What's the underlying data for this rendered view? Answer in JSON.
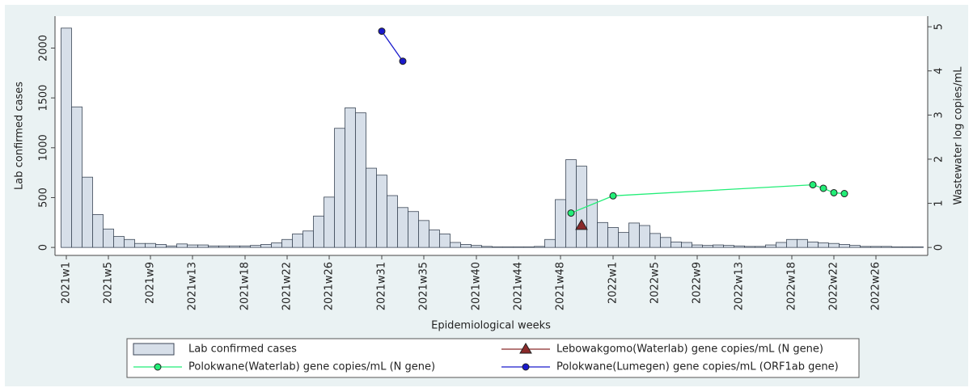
{
  "chart_data": {
    "type": "combo",
    "x_label": "Epidemiological weeks",
    "y_label": "Lab confirmed cases",
    "y2_label": "Wastewater log copies/mL",
    "categories": [
      "2021w1",
      null,
      null,
      null,
      "2021w5",
      null,
      null,
      null,
      "2021w9",
      null,
      null,
      null,
      "2021w13",
      null,
      null,
      null,
      null,
      "2021w18",
      null,
      null,
      null,
      "2021w22",
      null,
      null,
      null,
      "2021w26",
      null,
      null,
      null,
      null,
      "2021w31",
      null,
      null,
      null,
      "2021w35",
      null,
      null,
      null,
      null,
      "2021w40",
      null,
      null,
      null,
      "2021w44",
      null,
      null,
      null,
      "2021w48",
      null,
      null,
      null,
      null,
      "2022w1",
      null,
      null,
      null,
      "2022w5",
      null,
      null,
      null,
      "2022w9",
      null,
      null,
      null,
      "2022w13",
      null,
      null,
      null,
      null,
      "2022w18",
      null,
      null,
      null,
      "2022w22",
      null,
      null,
      null,
      "2022w26",
      null,
      null,
      null,
      null
    ],
    "ylim": [
      -80,
      2320
    ],
    "yticks": [
      0,
      500,
      1000,
      1500,
      2000
    ],
    "y2lim": [
      -0.18,
      5.24
    ],
    "y2ticks": [
      0,
      1,
      2,
      3,
      4,
      5
    ],
    "series": [
      {
        "name": "Lab confirmed cases",
        "type": "bar",
        "color": "#d7dfe9",
        "values": [
          2200,
          1410,
          705,
          330,
          185,
          110,
          80,
          40,
          40,
          30,
          15,
          35,
          25,
          25,
          15,
          15,
          15,
          15,
          20,
          30,
          45,
          80,
          135,
          165,
          315,
          505,
          1195,
          1400,
          1350,
          795,
          725,
          520,
          400,
          360,
          270,
          175,
          135,
          50,
          30,
          20,
          10,
          5,
          5,
          5,
          5,
          10,
          80,
          480,
          880,
          815,
          480,
          250,
          200,
          150,
          245,
          220,
          140,
          100,
          55,
          50,
          25,
          20,
          25,
          20,
          15,
          10,
          10,
          25,
          50,
          80,
          80,
          55,
          45,
          40,
          30,
          20,
          10,
          10,
          10,
          5,
          5,
          5
        ]
      },
      {
        "name": "Polokwane(Lumegen) gene copies/mL (ORF1ab gene)",
        "type": "line",
        "axis": "y2",
        "marker": "circle",
        "color": "#1a1acc",
        "connect_gaps": true,
        "values": [
          null,
          null,
          null,
          null,
          null,
          null,
          null,
          null,
          null,
          null,
          null,
          null,
          null,
          null,
          null,
          null,
          null,
          null,
          null,
          null,
          null,
          null,
          null,
          null,
          null,
          null,
          null,
          null,
          null,
          null,
          4.9,
          null,
          4.22,
          null,
          null,
          null,
          null,
          null,
          null,
          null,
          null,
          null,
          null,
          null,
          null,
          null,
          null,
          null,
          null,
          null,
          null,
          null,
          null,
          null,
          null,
          null,
          null,
          null,
          null,
          null,
          null,
          null,
          null,
          null,
          null,
          null,
          null,
          null,
          null,
          null,
          null,
          null,
          null,
          null,
          null,
          null,
          null,
          null,
          null,
          null,
          null,
          null
        ]
      },
      {
        "name": "Lebowakgomo(Waterlab) gene copies/mL (N gene)",
        "type": "line",
        "axis": "y2",
        "marker": "triangle",
        "color": "#8b2a2a",
        "connect_gaps": true,
        "values": [
          null,
          null,
          null,
          null,
          null,
          null,
          null,
          null,
          null,
          null,
          null,
          null,
          null,
          null,
          null,
          null,
          null,
          null,
          null,
          null,
          null,
          null,
          null,
          null,
          null,
          null,
          null,
          null,
          null,
          null,
          null,
          null,
          null,
          null,
          null,
          null,
          null,
          null,
          null,
          null,
          null,
          null,
          null,
          null,
          null,
          null,
          null,
          null,
          null,
          0.5,
          null,
          null,
          null,
          null,
          null,
          null,
          null,
          null,
          null,
          null,
          null,
          null,
          null,
          null,
          null,
          null,
          null,
          null,
          null,
          null,
          null,
          null,
          null,
          null,
          null,
          null,
          null,
          null,
          null,
          null,
          null,
          null
        ]
      },
      {
        "name": "Polokwane(Waterlab) gene copies/mL (N gene)",
        "type": "line",
        "axis": "y2",
        "marker": "circle",
        "color": "#22ee77",
        "connect_gaps": true,
        "values": [
          null,
          null,
          null,
          null,
          null,
          null,
          null,
          null,
          null,
          null,
          null,
          null,
          null,
          null,
          null,
          null,
          null,
          null,
          null,
          null,
          null,
          null,
          null,
          null,
          null,
          null,
          null,
          null,
          null,
          null,
          null,
          null,
          null,
          null,
          null,
          null,
          null,
          null,
          null,
          null,
          null,
          null,
          null,
          null,
          null,
          null,
          null,
          null,
          0.78,
          null,
          null,
          null,
          1.17,
          null,
          null,
          null,
          null,
          null,
          null,
          null,
          null,
          null,
          null,
          null,
          null,
          null,
          null,
          null,
          null,
          null,
          null,
          1.42,
          1.34,
          1.24,
          1.22,
          null,
          null,
          null,
          null,
          null,
          null,
          null
        ]
      }
    ]
  }
}
